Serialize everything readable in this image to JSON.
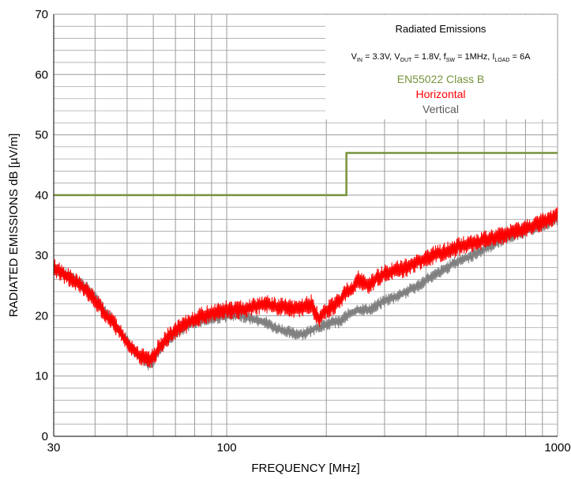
{
  "chart_data": {
    "type": "line",
    "title": "Radiated Emissions",
    "subtitle": {
      "vin_label": "V",
      "vin_sub": "IN",
      "vin_val": " = 3.3V, ",
      "vout_label": "V",
      "vout_sub": "OUT",
      "vout_val": " = 1.8V, ",
      "fsw_label": "f",
      "fsw_sub": "SW",
      "fsw_val": " = 1MHz, ",
      "iload_label": "I",
      "iload_sub": "LOAD",
      "iload_val": " = 6A"
    },
    "xlabel": "FREQUENCY [MHz]",
    "ylabel": "RADIATED EMISSIONS dB [µV/m]",
    "xscale": "log",
    "xlim": [
      30,
      1000
    ],
    "ylim": [
      0,
      70
    ],
    "xtick_labels": [
      "30",
      "100",
      "1000"
    ],
    "yticks": [
      0,
      10,
      20,
      30,
      40,
      50,
      60,
      70
    ],
    "legend_placement": "top-right",
    "grid": true,
    "series": [
      {
        "name": "EN55022 Class B",
        "color": "#77933c",
        "x": [
          30,
          230,
          230,
          1000
        ],
        "y": [
          40,
          40,
          47,
          47
        ]
      },
      {
        "name": "Horizontal",
        "color": "#ff0000",
        "x": [
          30,
          32,
          34,
          36,
          38,
          40,
          42,
          44,
          46,
          48,
          50,
          52,
          54,
          56,
          58,
          60,
          62,
          65,
          70,
          75,
          80,
          90,
          100,
          110,
          120,
          130,
          140,
          150,
          160,
          170,
          180,
          185,
          190,
          200,
          210,
          220,
          230,
          240,
          250,
          260,
          270,
          280,
          290,
          300,
          320,
          350,
          380,
          400,
          420,
          450,
          480,
          500,
          550,
          600,
          650,
          700,
          750,
          800,
          850,
          900,
          950,
          1000
        ],
        "y": [
          28,
          27,
          26,
          25,
          24,
          22.5,
          21,
          19.5,
          18.5,
          17,
          15.5,
          14.5,
          13.5,
          13,
          12.5,
          13,
          14.5,
          16,
          17.5,
          18.5,
          19.5,
          20.5,
          21,
          21,
          21.5,
          22,
          21.5,
          21.5,
          21,
          21.5,
          22,
          20.5,
          19.5,
          21,
          21.5,
          22.5,
          24,
          24.5,
          26,
          25.5,
          25,
          26,
          26.5,
          27,
          27.5,
          28,
          29,
          29.5,
          30,
          30.5,
          31,
          31.5,
          32,
          32.5,
          33,
          33.5,
          34,
          34.5,
          35,
          35.5,
          36,
          37
        ]
      },
      {
        "name": "Vertical",
        "color": "#808080",
        "x": [
          30,
          32,
          34,
          36,
          38,
          40,
          42,
          44,
          46,
          48,
          50,
          52,
          54,
          56,
          58,
          60,
          62,
          65,
          70,
          75,
          80,
          90,
          100,
          110,
          120,
          130,
          140,
          150,
          160,
          170,
          180,
          185,
          190,
          200,
          210,
          220,
          230,
          240,
          250,
          260,
          270,
          280,
          290,
          300,
          320,
          350,
          380,
          400,
          420,
          450,
          480,
          500,
          550,
          600,
          650,
          700,
          750,
          800,
          850,
          900,
          950,
          1000
        ],
        "y": [
          28,
          27,
          26.5,
          25.5,
          24.5,
          23,
          21.5,
          20,
          18.5,
          17,
          16,
          14.5,
          13.5,
          13,
          12,
          12.5,
          14,
          15.5,
          17,
          18,
          19,
          19.5,
          20,
          20,
          19.5,
          19,
          18,
          17.5,
          17,
          17,
          17.5,
          18,
          18,
          18.5,
          19,
          19,
          20,
          20.5,
          21,
          21,
          21,
          21.5,
          22,
          22.5,
          23,
          24,
          25,
          26,
          26.5,
          27.5,
          28.5,
          29,
          30,
          31,
          32,
          33,
          33.5,
          34,
          34.5,
          35,
          35.5,
          36
        ]
      }
    ]
  }
}
